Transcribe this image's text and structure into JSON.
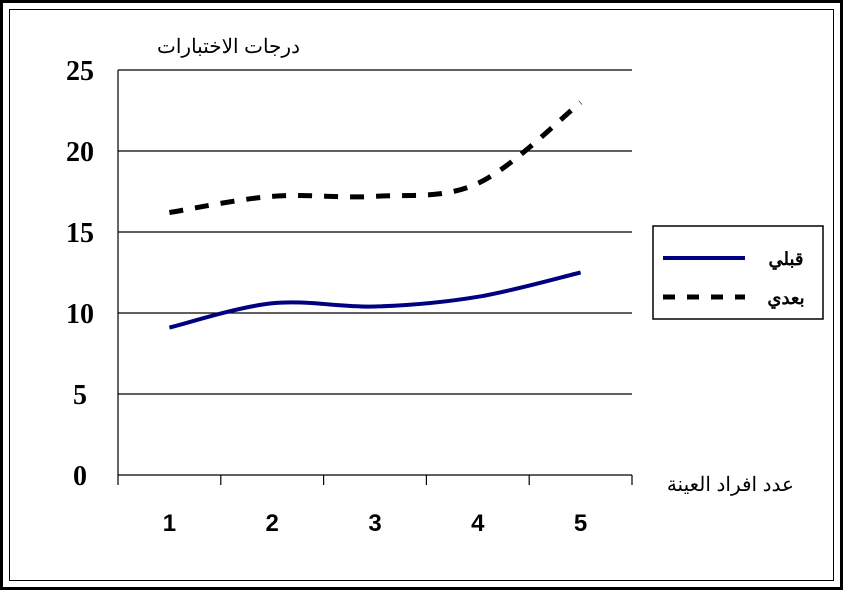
{
  "chart_data": {
    "type": "line",
    "title": "",
    "ylabel": "درجات الاختبارات",
    "xlabel": "عدد افراد العينة",
    "categories": [
      "1",
      "2",
      "3",
      "4",
      "5"
    ],
    "ylim": [
      0,
      25
    ],
    "yticks": [
      0,
      5,
      10,
      15,
      20,
      25
    ],
    "grid": true,
    "legend_position": "right",
    "series": [
      {
        "name": "قبلي",
        "values": [
          9.1,
          10.6,
          10.4,
          11.0,
          12.5
        ],
        "color": "#000080",
        "style": "solid"
      },
      {
        "name": "بعدي",
        "values": [
          16.2,
          17.2,
          17.2,
          18.0,
          23.0
        ],
        "color": "#000000",
        "style": "dashed"
      }
    ]
  }
}
